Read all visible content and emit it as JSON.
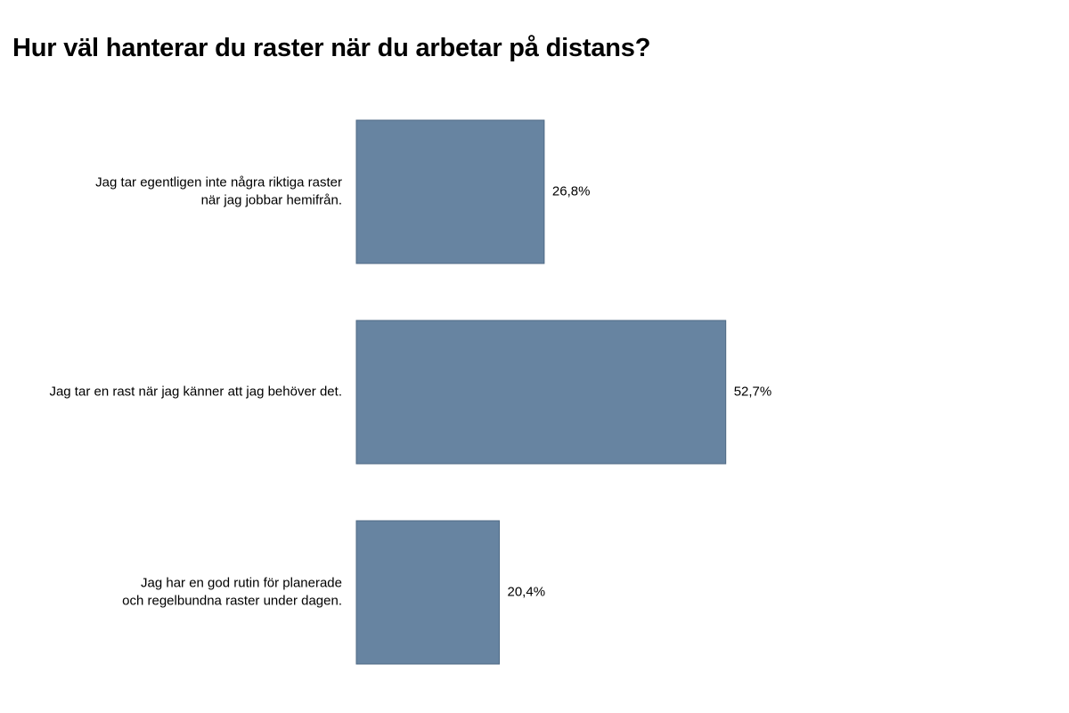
{
  "chart_data": {
    "type": "bar",
    "orientation": "horizontal",
    "title": "Hur väl hanterar du raster när du arbetar på distans?",
    "categories": [
      [
        "Jag tar egentligen inte några riktiga raster",
        "när jag jobbar hemifrån."
      ],
      [
        "Jag tar en rast när jag känner att jag behöver det."
      ],
      [
        "Jag har en god rutin för planerade",
        "och regelbundna raster under dagen."
      ]
    ],
    "values": [
      26.8,
      52.7,
      20.4
    ],
    "value_labels": [
      "26,8%",
      "52,7%",
      "20,4%"
    ],
    "xlim": [
      0,
      100
    ],
    "grid": false,
    "legend": "none",
    "bar_color": "#6784a1",
    "bar_edge_color": "#4f6a85"
  }
}
